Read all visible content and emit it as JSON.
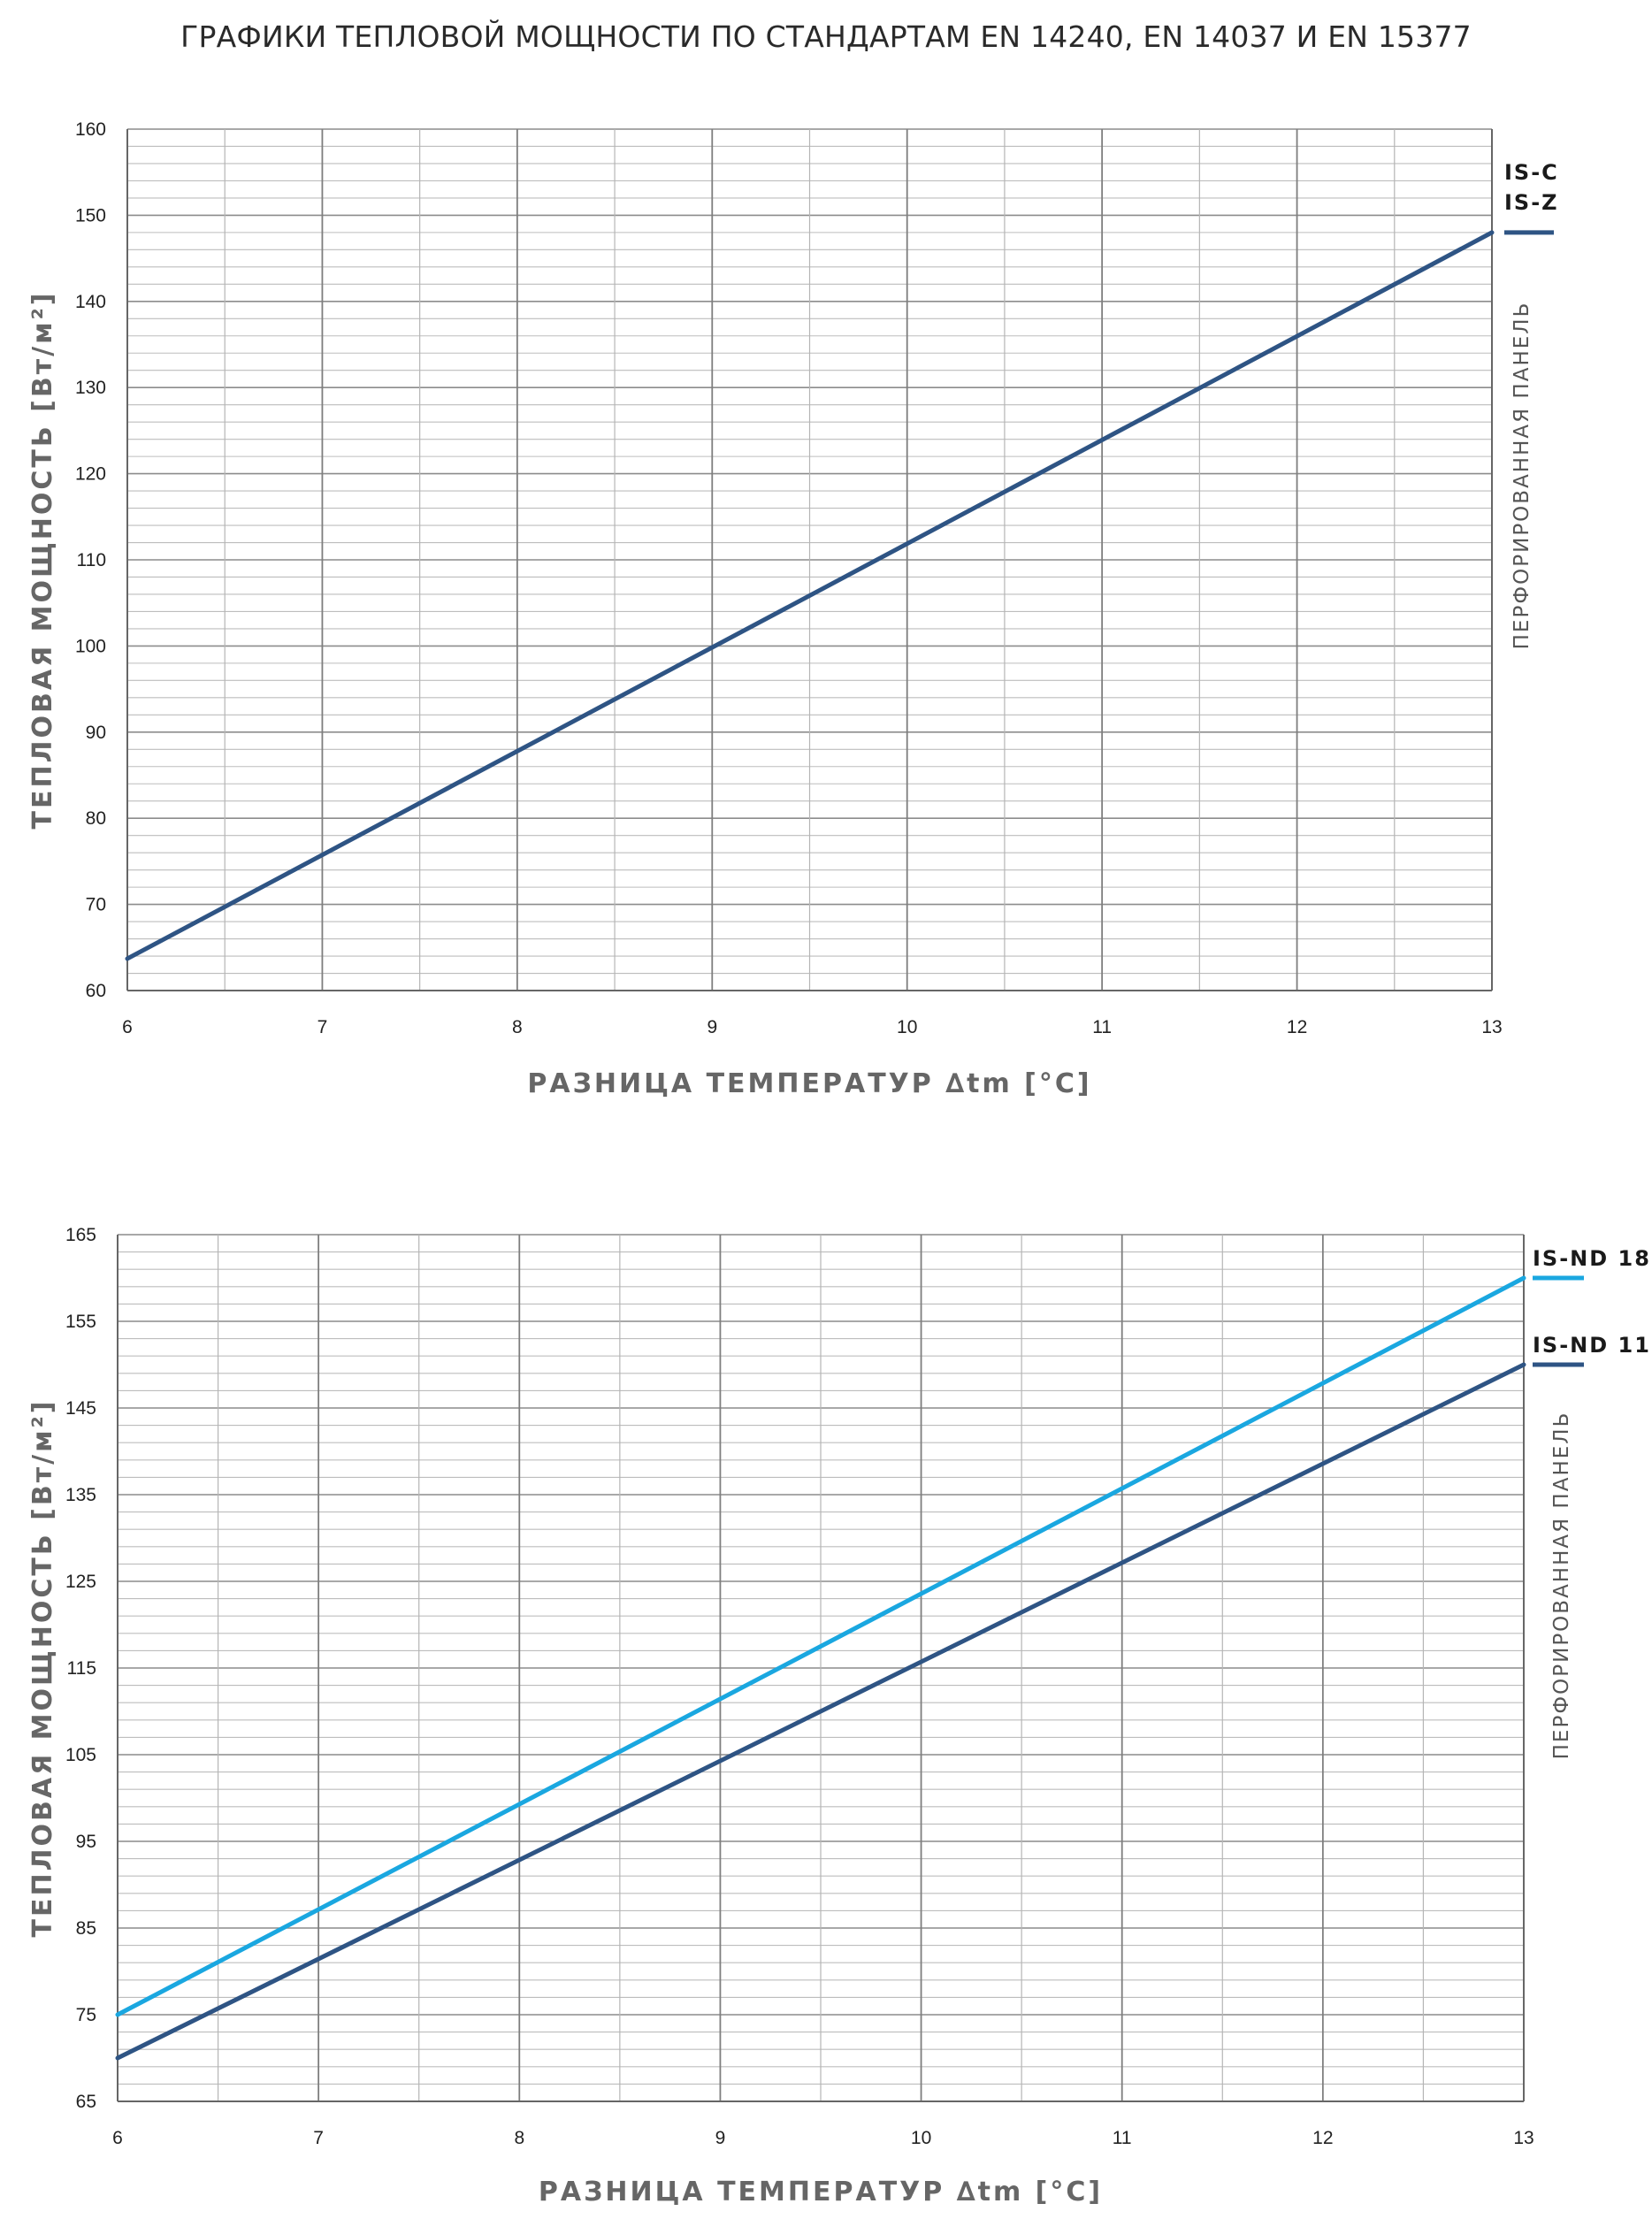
{
  "page_title": "ГРАФИКИ ТЕПЛОВОЙ МОЩНОСТИ ПО СТАНДАРТАМ EN 14240, EN 14037 И EN 15377",
  "chart_data": [
    {
      "type": "line",
      "xlabel": "РАЗНИЦА ТЕМПЕРАТУР ∆tm [°C]",
      "ylabel": "ТЕПЛОВАЯ МОЩНОСТЬ  [Вт/м²]",
      "side_label": "ПЕРФОРИРОВАННАЯ ПАНЕЛЬ",
      "xlim": [
        6,
        13
      ],
      "ylim": [
        60,
        160
      ],
      "x_ticks": [
        "6",
        "7",
        "8",
        "9",
        "10",
        "11",
        "12",
        "13"
      ],
      "y_ticks": [
        "60",
        "70",
        "80",
        "90",
        "100",
        "110",
        "120",
        "130",
        "140",
        "150",
        "160"
      ],
      "grid": true,
      "legend_position": "right",
      "legend_labels": [
        "IS-C",
        "IS-Z"
      ],
      "series": [
        {
          "name": "IS-C / IS-Z",
          "color": "#2e5484",
          "x": [
            6,
            13
          ],
          "y": [
            63.7,
            148
          ]
        }
      ]
    },
    {
      "type": "line",
      "xlabel": "РАЗНИЦА ТЕМПЕРАТУР ∆tm [°C]",
      "ylabel": "ТЕПЛОВАЯ МОЩНОСТЬ  [Вт/м²]",
      "side_label": "ПЕРФОРИРОВАННАЯ ПАНЕЛЬ",
      "xlim": [
        6,
        13
      ],
      "ylim": [
        65,
        165
      ],
      "x_ticks": [
        "6",
        "7",
        "8",
        "9",
        "10",
        "11",
        "12",
        "13"
      ],
      "y_ticks": [
        "65",
        "75",
        "85",
        "95",
        "105",
        "115",
        "125",
        "135",
        "145",
        "155",
        "165"
      ],
      "grid": true,
      "legend_position": "right",
      "series": [
        {
          "name": "IS-ND 18",
          "color": "#1aa7e0",
          "x": [
            6,
            13
          ],
          "y": [
            75,
            160
          ]
        },
        {
          "name": "IS-ND 11",
          "color": "#2e5484",
          "x": [
            6,
            13
          ],
          "y": [
            70,
            150
          ]
        }
      ]
    }
  ]
}
